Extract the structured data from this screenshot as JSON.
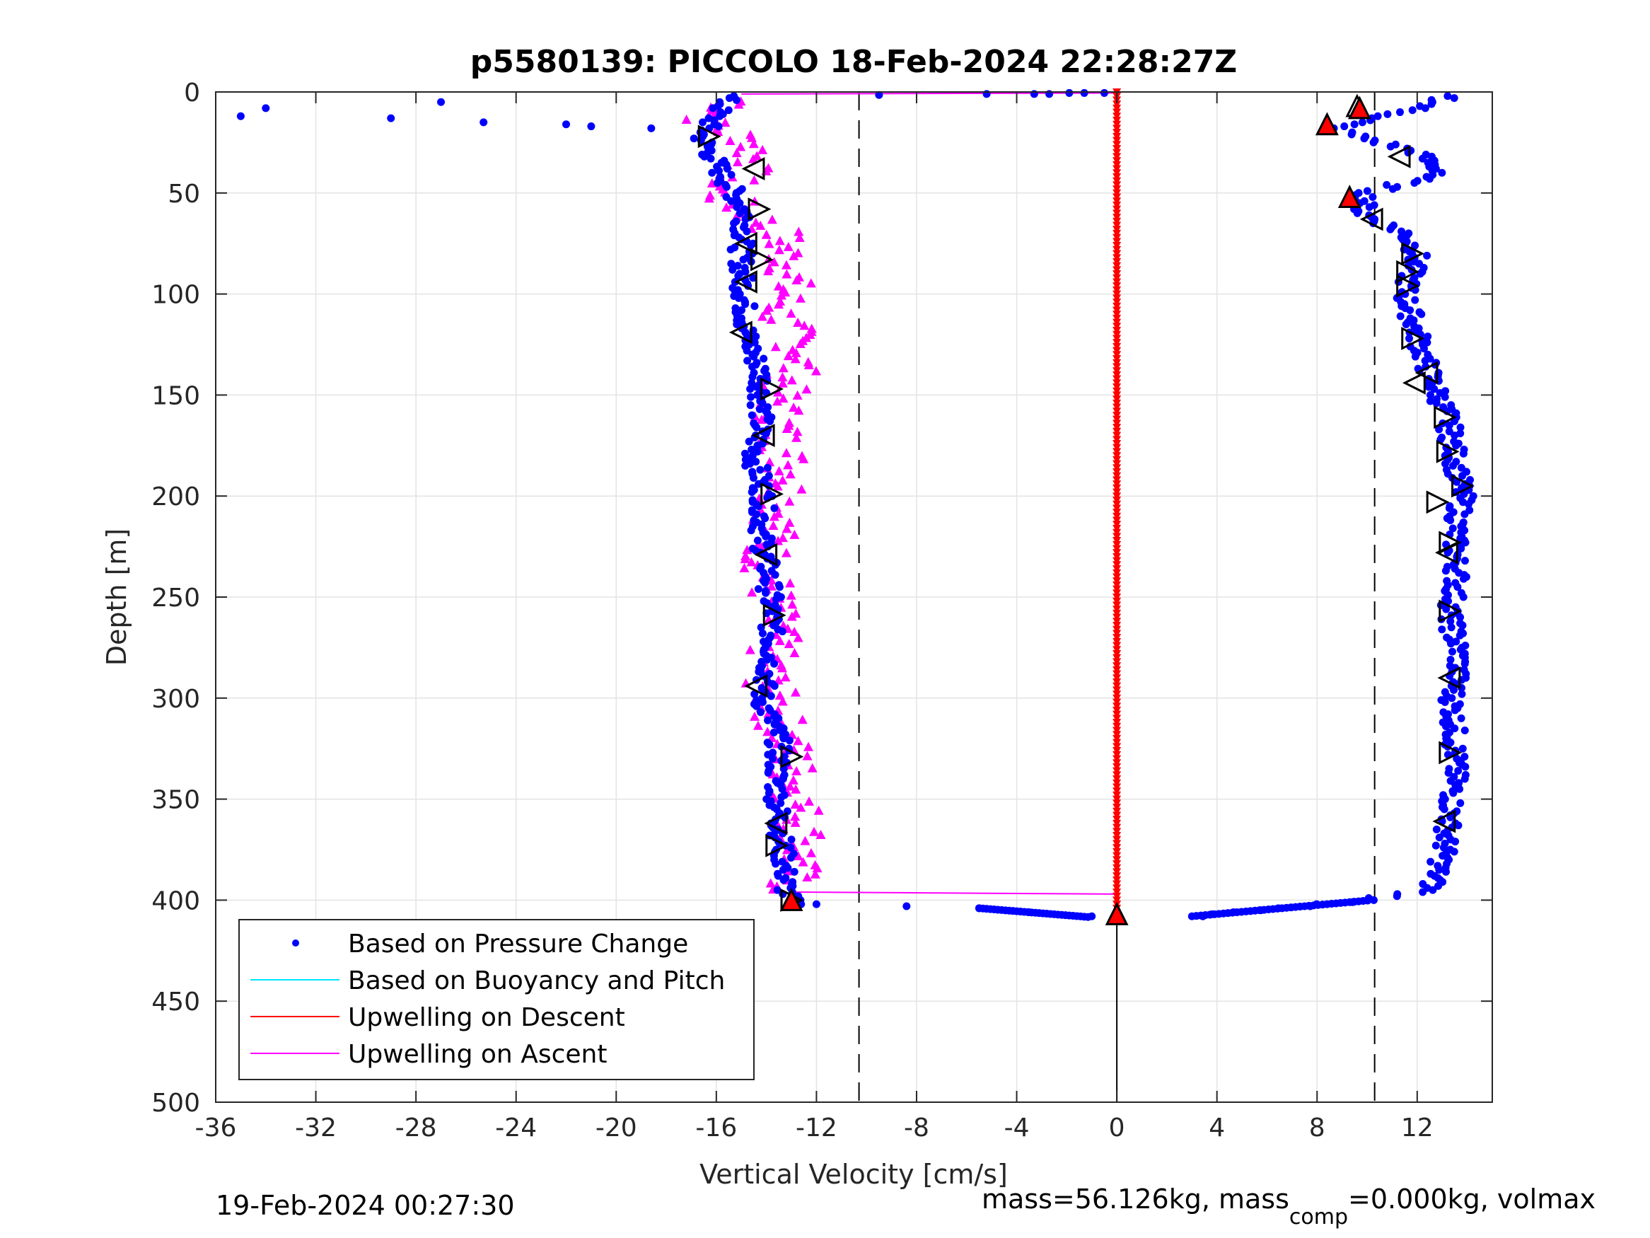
{
  "chart_data": {
    "type": "scatter",
    "title": "p5580139: PICCOLO 18-Feb-2024 22:28:27Z",
    "xlabel": "Vertical Velocity [cm/s]",
    "ylabel": "Depth [m]",
    "xlim": [
      -36,
      15
    ],
    "ylim": [
      0,
      500
    ],
    "y_reversed": true,
    "grid": true,
    "x_ticks": [
      -36,
      -32,
      -28,
      -24,
      -20,
      -16,
      -12,
      -8,
      -4,
      0,
      4,
      8,
      12
    ],
    "x_tick_labels": [
      "-36",
      "-32",
      "-28",
      "-24",
      "-20",
      "-16",
      "-12",
      "-8",
      "-4",
      "0",
      "4",
      "8",
      "12"
    ],
    "y_ticks": [
      0,
      50,
      100,
      150,
      200,
      250,
      300,
      350,
      400,
      450,
      500
    ],
    "y_tick_labels": [
      "0",
      "50",
      "100",
      "150",
      "200",
      "250",
      "300",
      "350",
      "400",
      "450",
      "500"
    ],
    "vertical_reference_lines": [
      -10.3,
      10.3
    ],
    "legend": {
      "location": "bottom-left",
      "entries": [
        {
          "label": "Based on Pressure Change",
          "color": "#0000ff",
          "marker": "dot"
        },
        {
          "label": "Based on Buoyancy and Pitch",
          "color": "#00e5ff",
          "marker": "line"
        },
        {
          "label": "Upwelling on Descent",
          "color": "#ff0000",
          "marker": "line"
        },
        {
          "label": "Upwelling on Ascent",
          "color": "#ff00ff",
          "marker": "line"
        }
      ]
    },
    "series": [
      {
        "name": "Based on Pressure Change",
        "color": "#0000ff",
        "descent_profile": {
          "depth": [
            2,
            22,
            40,
            60,
            80,
            100,
            120,
            140,
            160,
            180,
            200,
            220,
            240,
            260,
            280,
            300,
            320,
            340,
            360,
            380,
            395,
            402
          ],
          "velocity": [
            -15.5,
            -16.6,
            -15.8,
            -14.8,
            -15.0,
            -14.9,
            -14.8,
            -14.2,
            -14.2,
            -14.5,
            -14.1,
            -14.2,
            -13.9,
            -13.8,
            -13.8,
            -14.2,
            -13.5,
            -13.6,
            -13.5,
            -13.3,
            -13.2,
            -13.0
          ]
        },
        "ascent_profile": {
          "depth": [
            2,
            10,
            18,
            30,
            40,
            50,
            60,
            70,
            80,
            100,
            120,
            140,
            160,
            180,
            200,
            220,
            240,
            260,
            280,
            300,
            320,
            340,
            360,
            380,
            395,
            400,
            405,
            408
          ],
          "velocity": [
            13.5,
            11.5,
            8.5,
            12.0,
            13.0,
            10.0,
            9.8,
            11.5,
            12.0,
            11.5,
            12.0,
            12.5,
            13.2,
            13.5,
            13.8,
            13.5,
            13.6,
            13.3,
            13.7,
            13.4,
            13.5,
            13.5,
            13.3,
            13.0,
            12.5,
            10.0,
            6.0,
            3.0
          ]
        },
        "surface_points": {
          "depth": [
            12,
            8,
            13,
            5,
            15,
            16,
            17,
            18
          ],
          "velocity": [
            -35,
            -34,
            -29,
            -27,
            -25.3,
            -22,
            -21,
            -18.6
          ]
        },
        "bottom_points": {
          "depth": [
            402,
            403,
            404,
            406,
            408
          ],
          "velocity": [
            -12,
            -8.4,
            -5.5,
            -3.5,
            -1
          ]
        }
      },
      {
        "name": "Upwelling on Descent",
        "color": "#ff0000",
        "depth": [
          0,
          50,
          100,
          150,
          200,
          250,
          300,
          350,
          400
        ],
        "velocity": [
          0,
          0,
          0,
          0,
          0,
          0,
          0,
          0,
          0
        ]
      },
      {
        "name": "Upwelling on Ascent",
        "color": "#ff00ff",
        "depth": [
          5,
          15,
          25,
          35,
          50,
          70,
          90,
          110,
          130,
          150,
          170,
          190,
          210,
          230,
          250,
          270,
          290,
          310,
          330,
          350,
          370,
          390,
          395
        ],
        "velocity": [
          -15,
          -16.5,
          -14.5,
          -14.5,
          -16,
          -13.5,
          -13,
          -13.5,
          -12.5,
          -13.5,
          -13.5,
          -13,
          -13.5,
          -14,
          -13.8,
          -13.7,
          -14,
          -13.5,
          -13,
          -12.8,
          -12.5,
          -13,
          -13
        ]
      }
    ],
    "triangle_markers": {
      "left_profile": {
        "depth": [
          22,
          38,
          58,
          75,
          83,
          94,
          119,
          147,
          170,
          199,
          229,
          259,
          294,
          329,
          362,
          373,
          400
        ],
        "velocity": [
          -16.3,
          -14.5,
          -14.3,
          -14.8,
          -14.2,
          -14.8,
          -15.0,
          -13.8,
          -14.1,
          -13.8,
          -14.0,
          -13.7,
          -14.4,
          -13.0,
          -13.6,
          -13.6,
          -13.0
        ],
        "direction": [
          "right",
          "left",
          "right",
          "left",
          "right",
          "left",
          "left",
          "right",
          "left",
          "right",
          "left",
          "right",
          "left",
          "right",
          "left",
          "right",
          "right"
        ]
      },
      "right_profile": {
        "depth": [
          7,
          32,
          63,
          80,
          89,
          96,
          122,
          139,
          144,
          161,
          178,
          195,
          203,
          223,
          228,
          257,
          290,
          327,
          361
        ],
        "velocity": [
          9.6,
          11.3,
          10.2,
          11.8,
          11.6,
          11.6,
          11.8,
          12.4,
          11.9,
          13.1,
          13.2,
          13.8,
          12.8,
          13.3,
          13.2,
          13.3,
          13.3,
          13.3,
          13.1
        ],
        "direction": [
          "up",
          "left",
          "left",
          "right",
          "right",
          "right",
          "right",
          "left",
          "left",
          "right",
          "right",
          "right",
          "right",
          "right",
          "left",
          "right",
          "left",
          "right",
          "left"
        ]
      },
      "red_markers": {
        "depth": [
          16,
          8,
          52,
          400,
          407
        ],
        "velocity": [
          8.4,
          9.7,
          9.3,
          -13.0,
          0
        ]
      }
    }
  },
  "footer": {
    "timestamp": "19-Feb-2024 00:27:30",
    "mass_prefix": "mass=56.126kg, mass",
    "mass_sub": "comp",
    "mass_suffix": "=0.000kg, volmax"
  }
}
